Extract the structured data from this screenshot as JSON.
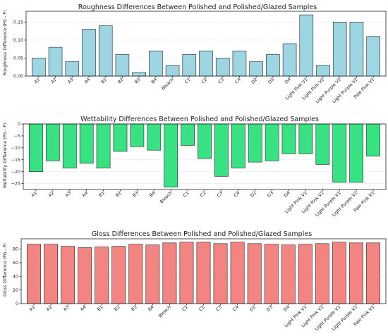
{
  "chart_data": [
    {
      "type": "bar",
      "title": "Roughness Differences Between Polished and Polished/Glazed Samples",
      "xlabel": "",
      "ylabel": "Roughness Difference (PG - P)",
      "categories": [
        "A1",
        "A2",
        "A3",
        "A4",
        "B1",
        "B2",
        "B3",
        "B4",
        "Bleach",
        "C1",
        "C2",
        "C3",
        "C4",
        "D2",
        "D3",
        "D4",
        "Light Pink V1",
        "Light Pink V2",
        "Light Purple V1",
        "Light Purple V2",
        "Pale Pink V1"
      ],
      "values": [
        0.05,
        0.08,
        0.04,
        0.13,
        0.14,
        0.06,
        0.01,
        0.07,
        0.03,
        0.06,
        0.07,
        0.05,
        0.07,
        0.04,
        0.06,
        0.09,
        0.17,
        0.03,
        0.15,
        0.15,
        0.11
      ],
      "ylim": [
        0,
        0.18
      ],
      "yticks": [
        0.0,
        0.05,
        0.1,
        0.15
      ],
      "ytick_labels": [
        "0.00",
        "0.05",
        "0.10",
        "0.15"
      ],
      "color": "#9dd6e2",
      "grid": true
    },
    {
      "type": "bar",
      "title": "Wettability Differences Between Polished and Polished/Glazed Samples",
      "xlabel": "",
      "ylabel": "Wettability Difference (PG - P)",
      "categories": [
        "A1",
        "A2",
        "A3",
        "A4",
        "B1",
        "B2",
        "B3",
        "B4",
        "Bleach",
        "C1",
        "C2",
        "C3",
        "C4",
        "D2",
        "D3",
        "D4",
        "Light Pink V1",
        "Light Pink V2",
        "Light Purple V1",
        "Light Purple V2",
        "Pale Pink V1"
      ],
      "values": [
        -20,
        -15.5,
        -18.5,
        -16.5,
        -18.5,
        -11.5,
        -9.5,
        -11,
        -26.5,
        -9,
        -14.5,
        -22,
        -18.5,
        -16,
        -15.5,
        -12.5,
        -12.5,
        -17,
        -24.5,
        -24.5,
        -13.5
      ],
      "ylim": [
        -27.5,
        0
      ],
      "yticks": [
        0,
        -5,
        -10,
        -15,
        -20,
        -25
      ],
      "ytick_labels": [
        "0",
        "−5",
        "−10",
        "−15",
        "−20",
        "−25"
      ],
      "color": "#38e283",
      "grid": true
    },
    {
      "type": "bar",
      "title": "Gloss Differences Between Polished and Polished/Glazed Samples",
      "xlabel": "",
      "ylabel": "Gloss Difference (PG - P)",
      "categories": [
        "A1",
        "A2",
        "A3",
        "A4",
        "B1",
        "B2",
        "B3",
        "B4",
        "Bleach",
        "C1",
        "C2",
        "C3",
        "C4",
        "D2",
        "D3",
        "D4",
        "Light Pink V1",
        "Light Pink V2",
        "Light Purple V1",
        "Light Purple V2",
        "Pale Pink V1"
      ],
      "values": [
        87,
        87,
        84,
        82,
        83,
        84,
        87,
        86,
        89,
        90,
        90,
        88,
        90,
        88,
        87,
        86,
        87,
        88,
        90,
        89,
        89
      ],
      "ylim": [
        0,
        95
      ],
      "yticks": [
        0,
        20,
        40,
        60,
        80
      ],
      "ytick_labels": [
        "0",
        "20",
        "40",
        "60",
        "80"
      ],
      "color": "#f28482",
      "grid": true
    }
  ]
}
